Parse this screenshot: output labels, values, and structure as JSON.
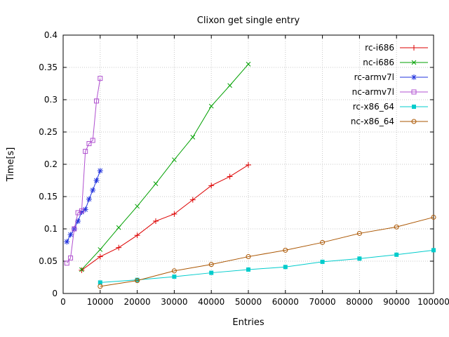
{
  "chart_data": {
    "type": "line",
    "title": "Clixon get single entry",
    "xlabel": "Entries",
    "ylabel": "Time[s]",
    "xlim": [
      0,
      100000
    ],
    "ylim": [
      0,
      0.4
    ],
    "xticks": [
      0,
      10000,
      20000,
      30000,
      40000,
      50000,
      60000,
      70000,
      80000,
      90000,
      100000
    ],
    "yticks": [
      0,
      0.05,
      0.1,
      0.15,
      0.2,
      0.25,
      0.3,
      0.35,
      0.4
    ],
    "grid": true,
    "legend_position": "top-right",
    "colors": {
      "grid": "#c8c8c8",
      "border": "#000000"
    },
    "series": [
      {
        "name": "rc-i686",
        "color": "#dd0000",
        "marker": "plus",
        "x": [
          5000,
          10000,
          15000,
          20000,
          25000,
          30000,
          35000,
          40000,
          45000,
          50000
        ],
        "y": [
          0.036,
          0.057,
          0.071,
          0.09,
          0.112,
          0.123,
          0.145,
          0.167,
          0.181,
          0.199
        ]
      },
      {
        "name": "nc-i686",
        "color": "#00a000",
        "marker": "cross",
        "x": [
          5000,
          10000,
          15000,
          20000,
          25000,
          30000,
          35000,
          40000,
          45000,
          50000
        ],
        "y": [
          0.037,
          0.068,
          0.102,
          0.135,
          0.17,
          0.207,
          0.242,
          0.29,
          0.322,
          0.355
        ]
      },
      {
        "name": "rc-armv7l",
        "color": "#2233dd",
        "marker": "asterisk",
        "x": [
          1000,
          2000,
          3000,
          4000,
          5000,
          6000,
          7000,
          8000,
          9000,
          10000
        ],
        "y": [
          0.08,
          0.091,
          0.1,
          0.112,
          0.126,
          0.13,
          0.146,
          0.16,
          0.175,
          0.19
        ]
      },
      {
        "name": "nc-armv7l",
        "color": "#b050d0",
        "marker": "square-open",
        "x": [
          1000,
          2000,
          3000,
          4000,
          5000,
          6000,
          7000,
          8000,
          9000,
          10000
        ],
        "y": [
          0.047,
          0.055,
          0.1,
          0.125,
          0.128,
          0.22,
          0.232,
          0.237,
          0.298,
          0.333
        ]
      },
      {
        "name": "rc-x86_64",
        "color": "#00cccc",
        "marker": "square-filled",
        "x": [
          10000,
          20000,
          30000,
          40000,
          50000,
          60000,
          70000,
          80000,
          90000,
          100000
        ],
        "y": [
          0.017,
          0.021,
          0.026,
          0.032,
          0.037,
          0.041,
          0.049,
          0.054,
          0.06,
          0.067
        ]
      },
      {
        "name": "nc-x86_64",
        "color": "#aa5500",
        "marker": "circle-open",
        "x": [
          10000,
          20000,
          30000,
          40000,
          50000,
          60000,
          70000,
          80000,
          90000,
          100000
        ],
        "y": [
          0.011,
          0.02,
          0.035,
          0.045,
          0.057,
          0.067,
          0.079,
          0.093,
          0.103,
          0.118
        ]
      }
    ]
  }
}
